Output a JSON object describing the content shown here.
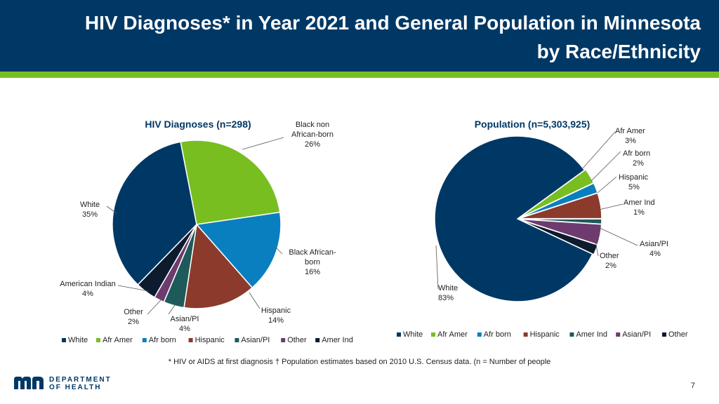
{
  "header": {
    "title_line1": "HIV Diagnoses* in Year 2021 and General Population in Minnesota",
    "title_line2": "by Race/Ethnicity"
  },
  "colors": {
    "header_bg": "#003865",
    "accent_green": "#78be21",
    "white": "#003865",
    "afr_amer": "#78be21",
    "afr_born": "#0a7fbf",
    "hispanic": "#8b3a2b",
    "amer_ind": "#1f5a5a",
    "asian_pi": "#6d3b6e",
    "other": "#0d1b2e"
  },
  "chart_data": [
    {
      "type": "pie",
      "title": "HIV Diagnoses (n=298)",
      "slices": [
        {
          "key": "white",
          "label": [
            "White",
            "35%"
          ],
          "value": 35
        },
        {
          "key": "afr_amer",
          "label": [
            "Black non",
            "African-born",
            "26%"
          ],
          "value": 26
        },
        {
          "key": "afr_born",
          "label": [
            "Black African-",
            "born",
            "16%"
          ],
          "value": 16
        },
        {
          "key": "hispanic",
          "label": [
            "Hispanic",
            "14%"
          ],
          "value": 14
        },
        {
          "key": "amer_ind",
          "label": [
            "Asian/PI",
            "4%"
          ],
          "value": 4
        },
        {
          "key": "asian_pi",
          "label": [
            "Other",
            "2%"
          ],
          "value": 2
        },
        {
          "key": "other",
          "label": [
            "American Indian",
            "4%"
          ],
          "value": 4
        }
      ],
      "legend": [
        "White",
        "Afr Amer",
        "Afr born",
        "Hispanic",
        "Asian/PI",
        "Other",
        "Amer Ind"
      ],
      "legend_keys": [
        "white",
        "afr_amer",
        "afr_born",
        "hispanic",
        "amer_ind",
        "asian_pi",
        "other"
      ]
    },
    {
      "type": "pie",
      "title": "Population (n=5,303,925)",
      "slices": [
        {
          "key": "afr_amer",
          "label": [
            "Afr Amer",
            "3%"
          ],
          "value": 3
        },
        {
          "key": "afr_born",
          "label": [
            "Afr born",
            "2%"
          ],
          "value": 2
        },
        {
          "key": "hispanic",
          "label": [
            "Hispanic",
            "5%"
          ],
          "value": 5
        },
        {
          "key": "amer_ind",
          "label": [
            "Amer Ind",
            "1%"
          ],
          "value": 1
        },
        {
          "key": "asian_pi",
          "label": [
            "Asian/PI",
            "4%"
          ],
          "value": 4
        },
        {
          "key": "other",
          "label": [
            "Other",
            "2%"
          ],
          "value": 2
        },
        {
          "key": "white",
          "label": [
            "White",
            "83%"
          ],
          "value": 83
        }
      ],
      "legend": [
        "White",
        "Afr Amer",
        "Afr born",
        "Hispanic",
        "Amer Ind",
        "Asian/PI",
        "Other"
      ],
      "legend_keys": [
        "white",
        "afr_amer",
        "afr_born",
        "hispanic",
        "amer_ind",
        "asian_pi",
        "other"
      ]
    }
  ],
  "footnote": "* HIV or AIDS at first diagnosis † Population estimates based on 2010 U.S. Census data. (n = Number of people",
  "logo": {
    "line1": "DEPARTMENT",
    "line2": "OF HEALTH"
  },
  "page_number": "7"
}
